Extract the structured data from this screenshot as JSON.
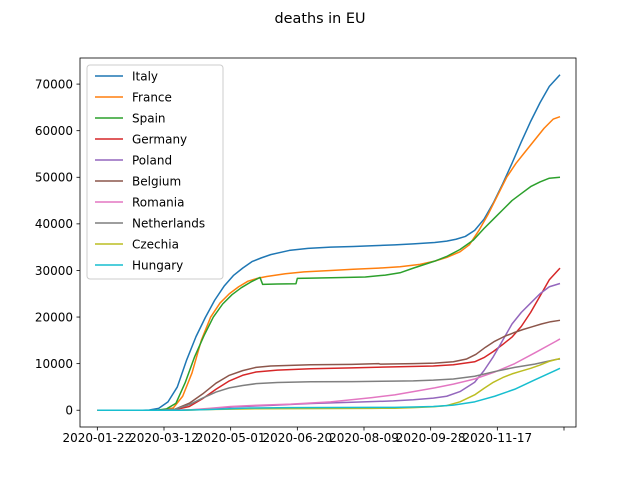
{
  "chart_data": {
    "type": "line",
    "title": "deaths in EU",
    "xlabel": "",
    "ylabel": "",
    "x_ticks": [
      "2020-01-22",
      "2020-03-12",
      "2020-05-01",
      "2020-06-20",
      "2020-08-09",
      "2020-09-28",
      "2020-11-17",
      ""
    ],
    "x_range": [
      "2020-01-09",
      "2021-01-15"
    ],
    "y_ticks": [
      0,
      10000,
      20000,
      30000,
      40000,
      50000,
      60000,
      70000
    ],
    "ylim": [
      -3600,
      75600
    ],
    "grid": false,
    "legend_position": "top-left",
    "colors": [
      "#1f77b4",
      "#ff7f0e",
      "#2ca02c",
      "#d62728",
      "#9467bd",
      "#8c564b",
      "#e377c2",
      "#7f7f7f",
      "#bcbd22",
      "#17becf"
    ],
    "series": [
      {
        "name": "Italy",
        "points": [
          [
            "2020-01-22",
            0
          ],
          [
            "2020-02-25",
            0
          ],
          [
            "2020-03-01",
            50
          ],
          [
            "2020-03-08",
            400
          ],
          [
            "2020-03-15",
            1800
          ],
          [
            "2020-03-22",
            5000
          ],
          [
            "2020-03-29",
            10800
          ],
          [
            "2020-04-05",
            15800
          ],
          [
            "2020-04-12",
            19900
          ],
          [
            "2020-04-19",
            23600
          ],
          [
            "2020-04-26",
            26600
          ],
          [
            "2020-05-03",
            28900
          ],
          [
            "2020-05-10",
            30500
          ],
          [
            "2020-05-17",
            31900
          ],
          [
            "2020-05-24",
            32700
          ],
          [
            "2020-05-31",
            33400
          ],
          [
            "2020-06-14",
            34300
          ],
          [
            "2020-06-28",
            34750
          ],
          [
            "2020-07-15",
            35000
          ],
          [
            "2020-08-01",
            35150
          ],
          [
            "2020-08-15",
            35300
          ],
          [
            "2020-09-01",
            35500
          ],
          [
            "2020-09-15",
            35700
          ],
          [
            "2020-10-01",
            36000
          ],
          [
            "2020-10-10",
            36300
          ],
          [
            "2020-10-17",
            36700
          ],
          [
            "2020-10-24",
            37300
          ],
          [
            "2020-10-31",
            38600
          ],
          [
            "2020-11-07",
            41000
          ],
          [
            "2020-11-14",
            44500
          ],
          [
            "2020-11-21",
            48600
          ],
          [
            "2020-11-28",
            53000
          ],
          [
            "2020-12-05",
            57600
          ],
          [
            "2020-12-12",
            62000
          ],
          [
            "2020-12-19",
            66000
          ],
          [
            "2020-12-26",
            69500
          ],
          [
            "2021-01-03",
            72000
          ]
        ]
      },
      {
        "name": "France",
        "points": [
          [
            "2020-01-22",
            0
          ],
          [
            "2020-03-05",
            0
          ],
          [
            "2020-03-12",
            60
          ],
          [
            "2020-03-19",
            500
          ],
          [
            "2020-03-26",
            3000
          ],
          [
            "2020-04-02",
            8000
          ],
          [
            "2020-04-09",
            15000
          ],
          [
            "2020-04-16",
            20000
          ],
          [
            "2020-04-23",
            23000
          ],
          [
            "2020-04-30",
            25000
          ],
          [
            "2020-05-07",
            26500
          ],
          [
            "2020-05-14",
            27700
          ],
          [
            "2020-05-21",
            28300
          ],
          [
            "2020-05-28",
            28700
          ],
          [
            "2020-06-11",
            29300
          ],
          [
            "2020-06-25",
            29700
          ],
          [
            "2020-07-15",
            30000
          ],
          [
            "2020-08-01",
            30250
          ],
          [
            "2020-08-20",
            30500
          ],
          [
            "2020-09-05",
            30800
          ],
          [
            "2020-09-20",
            31300
          ],
          [
            "2020-10-01",
            32000
          ],
          [
            "2020-10-10",
            32800
          ],
          [
            "2020-10-20",
            34000
          ],
          [
            "2020-10-27",
            35500
          ],
          [
            "2020-11-03",
            38500
          ],
          [
            "2020-11-10",
            42000
          ],
          [
            "2020-11-17",
            46000
          ],
          [
            "2020-11-24",
            50000
          ],
          [
            "2020-12-01",
            53000
          ],
          [
            "2020-12-08",
            55500
          ],
          [
            "2020-12-15",
            58000
          ],
          [
            "2020-12-22",
            60500
          ],
          [
            "2020-12-29",
            62500
          ],
          [
            "2021-01-03",
            63000
          ]
        ]
      },
      {
        "name": "Spain",
        "points": [
          [
            "2020-01-22",
            0
          ],
          [
            "2020-03-03",
            0
          ],
          [
            "2020-03-07",
            20
          ],
          [
            "2020-03-14",
            300
          ],
          [
            "2020-03-21",
            1500
          ],
          [
            "2020-03-28",
            6000
          ],
          [
            "2020-04-04",
            11500
          ],
          [
            "2020-04-11",
            16000
          ],
          [
            "2020-04-18",
            20000
          ],
          [
            "2020-04-25",
            22800
          ],
          [
            "2020-05-02",
            24800
          ],
          [
            "2020-05-09",
            26300
          ],
          [
            "2020-05-16",
            27500
          ],
          [
            "2020-05-23",
            28500
          ],
          [
            "2020-05-25",
            27000
          ],
          [
            "2020-06-05",
            27100
          ],
          [
            "2020-06-19",
            27150
          ],
          [
            "2020-06-20",
            28300
          ],
          [
            "2020-07-01",
            28350
          ],
          [
            "2020-07-20",
            28450
          ],
          [
            "2020-08-10",
            28600
          ],
          [
            "2020-08-25",
            29000
          ],
          [
            "2020-09-05",
            29500
          ],
          [
            "2020-09-15",
            30500
          ],
          [
            "2020-10-01",
            32000
          ],
          [
            "2020-10-10",
            33000
          ],
          [
            "2020-10-20",
            34500
          ],
          [
            "2020-10-30",
            36500
          ],
          [
            "2020-11-07",
            39000
          ],
          [
            "2020-11-14",
            41000
          ],
          [
            "2020-11-21",
            43000
          ],
          [
            "2020-11-28",
            45000
          ],
          [
            "2020-12-05",
            46500
          ],
          [
            "2020-12-12",
            48000
          ],
          [
            "2020-12-19",
            49000
          ],
          [
            "2020-12-26",
            49800
          ],
          [
            "2021-01-03",
            50000
          ]
        ]
      },
      {
        "name": "Germany",
        "points": [
          [
            "2020-01-22",
            0
          ],
          [
            "2020-03-10",
            0
          ],
          [
            "2020-03-20",
            100
          ],
          [
            "2020-03-31",
            800
          ],
          [
            "2020-04-10",
            2500
          ],
          [
            "2020-04-20",
            4500
          ],
          [
            "2020-04-30",
            6300
          ],
          [
            "2020-05-10",
            7500
          ],
          [
            "2020-05-20",
            8200
          ],
          [
            "2020-06-05",
            8600
          ],
          [
            "2020-06-30",
            8900
          ],
          [
            "2020-07-31",
            9100
          ],
          [
            "2020-08-31",
            9300
          ],
          [
            "2020-09-30",
            9500
          ],
          [
            "2020-10-15",
            9750
          ],
          [
            "2020-10-31",
            10400
          ],
          [
            "2020-11-07",
            11300
          ],
          [
            "2020-11-14",
            12600
          ],
          [
            "2020-11-21",
            14100
          ],
          [
            "2020-11-28",
            15700
          ],
          [
            "2020-12-05",
            18000
          ],
          [
            "2020-12-12",
            21000
          ],
          [
            "2020-12-19",
            24500
          ],
          [
            "2020-12-26",
            28000
          ],
          [
            "2021-01-03",
            30500
          ]
        ]
      },
      {
        "name": "Poland",
        "points": [
          [
            "2020-01-22",
            0
          ],
          [
            "2020-03-20",
            0
          ],
          [
            "2020-04-05",
            100
          ],
          [
            "2020-04-20",
            400
          ],
          [
            "2020-05-05",
            750
          ],
          [
            "2020-05-31",
            1050
          ],
          [
            "2020-06-30",
            1450
          ],
          [
            "2020-07-31",
            1700
          ],
          [
            "2020-08-31",
            2000
          ],
          [
            "2020-09-15",
            2250
          ],
          [
            "2020-09-30",
            2600
          ],
          [
            "2020-10-10",
            3000
          ],
          [
            "2020-10-20",
            4000
          ],
          [
            "2020-10-31",
            6000
          ],
          [
            "2020-11-07",
            8500
          ],
          [
            "2020-11-14",
            11500
          ],
          [
            "2020-11-21",
            15000
          ],
          [
            "2020-11-28",
            18500
          ],
          [
            "2020-12-05",
            21000
          ],
          [
            "2020-12-12",
            23000
          ],
          [
            "2020-12-19",
            25000
          ],
          [
            "2020-12-26",
            26500
          ],
          [
            "2021-01-03",
            27200
          ]
        ]
      },
      {
        "name": "Belgium",
        "points": [
          [
            "2020-01-22",
            0
          ],
          [
            "2020-03-10",
            0
          ],
          [
            "2020-03-20",
            200
          ],
          [
            "2020-03-31",
            1500
          ],
          [
            "2020-04-10",
            3500
          ],
          [
            "2020-04-20",
            5800
          ],
          [
            "2020-04-30",
            7500
          ],
          [
            "2020-05-10",
            8500
          ],
          [
            "2020-05-20",
            9200
          ],
          [
            "2020-05-31",
            9500
          ],
          [
            "2020-06-30",
            9750
          ],
          [
            "2020-07-31",
            9850
          ],
          [
            "2020-08-20",
            10000
          ],
          [
            "2020-08-21",
            9900
          ],
          [
            "2020-09-15",
            10000
          ],
          [
            "2020-10-01",
            10100
          ],
          [
            "2020-10-15",
            10400
          ],
          [
            "2020-10-25",
            11000
          ],
          [
            "2020-11-01",
            12000
          ],
          [
            "2020-11-08",
            13500
          ],
          [
            "2020-11-15",
            14800
          ],
          [
            "2020-11-22",
            15800
          ],
          [
            "2020-11-29",
            16600
          ],
          [
            "2020-12-06",
            17300
          ],
          [
            "2020-12-13",
            17900
          ],
          [
            "2020-12-20",
            18500
          ],
          [
            "2020-12-27",
            19000
          ],
          [
            "2021-01-03",
            19300
          ]
        ]
      },
      {
        "name": "Romania",
        "points": [
          [
            "2020-01-22",
            0
          ],
          [
            "2020-03-20",
            0
          ],
          [
            "2020-04-01",
            100
          ],
          [
            "2020-04-15",
            400
          ],
          [
            "2020-05-01",
            800
          ],
          [
            "2020-05-15",
            1000
          ],
          [
            "2020-06-15",
            1300
          ],
          [
            "2020-07-15",
            1800
          ],
          [
            "2020-08-15",
            2700
          ],
          [
            "2020-09-01",
            3300
          ],
          [
            "2020-09-15",
            4000
          ],
          [
            "2020-10-01",
            4800
          ],
          [
            "2020-10-15",
            5600
          ],
          [
            "2020-10-31",
            6700
          ],
          [
            "2020-11-15",
            8200
          ],
          [
            "2020-11-30",
            10000
          ],
          [
            "2020-12-15",
            12300
          ],
          [
            "2020-12-31",
            14800
          ],
          [
            "2021-01-03",
            15300
          ]
        ]
      },
      {
        "name": "Netherlands",
        "points": [
          [
            "2020-01-22",
            0
          ],
          [
            "2020-03-10",
            0
          ],
          [
            "2020-03-20",
            200
          ],
          [
            "2020-03-31",
            1200
          ],
          [
            "2020-04-10",
            2600
          ],
          [
            "2020-04-20",
            3900
          ],
          [
            "2020-04-30",
            4800
          ],
          [
            "2020-05-10",
            5300
          ],
          [
            "2020-05-20",
            5700
          ],
          [
            "2020-06-05",
            5950
          ],
          [
            "2020-06-30",
            6100
          ],
          [
            "2020-07-31",
            6150
          ],
          [
            "2020-08-31",
            6250
          ],
          [
            "2020-09-15",
            6300
          ],
          [
            "2020-09-30",
            6450
          ],
          [
            "2020-10-15",
            6700
          ],
          [
            "2020-10-31",
            7300
          ],
          [
            "2020-11-15",
            8300
          ],
          [
            "2020-11-30",
            9200
          ],
          [
            "2020-12-15",
            9900
          ],
          [
            "2020-12-31",
            10900
          ],
          [
            "2021-01-03",
            11000
          ]
        ]
      },
      {
        "name": "Czechia",
        "points": [
          [
            "2020-01-22",
            0
          ],
          [
            "2020-03-25",
            0
          ],
          [
            "2020-04-15",
            150
          ],
          [
            "2020-05-15",
            300
          ],
          [
            "2020-06-15",
            340
          ],
          [
            "2020-07-15",
            360
          ],
          [
            "2020-08-15",
            400
          ],
          [
            "2020-09-01",
            430
          ],
          [
            "2020-09-15",
            550
          ],
          [
            "2020-09-30",
            750
          ],
          [
            "2020-10-10",
            1000
          ],
          [
            "2020-10-20",
            1800
          ],
          [
            "2020-10-31",
            3300
          ],
          [
            "2020-11-07",
            4700
          ],
          [
            "2020-11-14",
            6000
          ],
          [
            "2020-11-21",
            7000
          ],
          [
            "2020-11-28",
            7800
          ],
          [
            "2020-12-05",
            8400
          ],
          [
            "2020-12-12",
            9000
          ],
          [
            "2020-12-19",
            9700
          ],
          [
            "2020-12-26",
            10500
          ],
          [
            "2021-01-03",
            11100
          ]
        ]
      },
      {
        "name": "Hungary",
        "points": [
          [
            "2020-01-22",
            0
          ],
          [
            "2020-03-25",
            0
          ],
          [
            "2020-04-15",
            150
          ],
          [
            "2020-05-15",
            480
          ],
          [
            "2020-06-15",
            560
          ],
          [
            "2020-07-15",
            590
          ],
          [
            "2020-08-15",
            610
          ],
          [
            "2020-09-01",
            625
          ],
          [
            "2020-09-15",
            680
          ],
          [
            "2020-09-30",
            800
          ],
          [
            "2020-10-15",
            1100
          ],
          [
            "2020-10-31",
            1800
          ],
          [
            "2020-11-15",
            3000
          ],
          [
            "2020-11-30",
            4500
          ],
          [
            "2020-12-15",
            6500
          ],
          [
            "2020-12-31",
            8600
          ],
          [
            "2021-01-03",
            9000
          ]
        ]
      }
    ]
  }
}
